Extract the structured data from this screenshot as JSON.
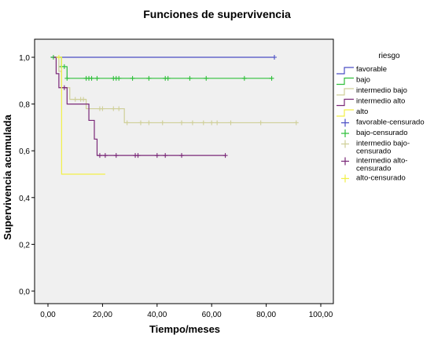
{
  "chart_data": {
    "type": "line",
    "title": "Funciones de supervivencia",
    "xlabel": "Tiempo/meses",
    "ylabel": "Supervivencia acumulada",
    "xlim": [
      0,
      100
    ],
    "ylim": [
      0,
      1
    ],
    "x_ticks": [
      0,
      20,
      40,
      60,
      80,
      100
    ],
    "x_tick_labels": [
      "0,00",
      "20,00",
      "40,00",
      "60,00",
      "80,00",
      "100,00"
    ],
    "y_ticks": [
      0,
      0.2,
      0.4,
      0.6,
      0.8,
      1.0
    ],
    "y_tick_labels": [
      "0,0",
      "0,2",
      "0,4",
      "0,6",
      "0,8",
      "1,0"
    ],
    "legend_title": "riesgo",
    "legend_position": "right",
    "series": [
      {
        "name": "favorable",
        "color": "#4a4ec4",
        "steps": [
          [
            1,
            1.0
          ],
          [
            83,
            1.0
          ]
        ],
        "censored": [
          [
            83,
            1.0
          ]
        ]
      },
      {
        "name": "bajo",
        "color": "#2fbf3a",
        "steps": [
          [
            1,
            1.0
          ],
          [
            5,
            0.96
          ],
          [
            7,
            0.91
          ],
          [
            82,
            0.91
          ]
        ],
        "censored": [
          [
            2,
            1.0
          ],
          [
            5,
            0.96
          ],
          [
            6,
            0.96
          ],
          [
            7,
            0.91
          ],
          [
            14,
            0.91
          ],
          [
            15,
            0.91
          ],
          [
            16,
            0.91
          ],
          [
            18,
            0.91
          ],
          [
            24,
            0.91
          ],
          [
            25,
            0.91
          ],
          [
            26,
            0.91
          ],
          [
            31,
            0.91
          ],
          [
            37,
            0.91
          ],
          [
            43,
            0.91
          ],
          [
            44,
            0.91
          ],
          [
            52,
            0.91
          ],
          [
            58,
            0.91
          ],
          [
            72,
            0.91
          ],
          [
            82,
            0.91
          ]
        ]
      },
      {
        "name": "intermedio bajo",
        "color": "#cfcf98",
        "steps": [
          [
            3,
            1.0
          ],
          [
            4,
            0.94
          ],
          [
            5,
            0.87
          ],
          [
            8,
            0.82
          ],
          [
            14,
            0.78
          ],
          [
            28,
            0.72
          ],
          [
            91,
            0.72
          ]
        ],
        "censored": [
          [
            10,
            0.82
          ],
          [
            12,
            0.82
          ],
          [
            13,
            0.82
          ],
          [
            19,
            0.78
          ],
          [
            20,
            0.78
          ],
          [
            24,
            0.78
          ],
          [
            26,
            0.78
          ],
          [
            29,
            0.72
          ],
          [
            34,
            0.72
          ],
          [
            37,
            0.72
          ],
          [
            42,
            0.72
          ],
          [
            49,
            0.72
          ],
          [
            53,
            0.72
          ],
          [
            57,
            0.72
          ],
          [
            60,
            0.72
          ],
          [
            62,
            0.72
          ],
          [
            67,
            0.72
          ],
          [
            78,
            0.72
          ],
          [
            91,
            0.72
          ]
        ]
      },
      {
        "name": "intermedio alto",
        "color": "#7a2878",
        "steps": [
          [
            2,
            1.0
          ],
          [
            3,
            0.93
          ],
          [
            4,
            0.87
          ],
          [
            7,
            0.8
          ],
          [
            15,
            0.73
          ],
          [
            17,
            0.65
          ],
          [
            18,
            0.58
          ],
          [
            65,
            0.58
          ]
        ],
        "censored": [
          [
            6,
            0.87
          ],
          [
            19,
            0.58
          ],
          [
            21,
            0.58
          ],
          [
            25,
            0.58
          ],
          [
            32,
            0.58
          ],
          [
            33,
            0.58
          ],
          [
            40,
            0.58
          ],
          [
            43,
            0.58
          ],
          [
            49,
            0.58
          ],
          [
            65,
            0.58
          ]
        ]
      },
      {
        "name": "alto",
        "color": "#f2f046",
        "steps": [
          [
            3,
            1.0
          ],
          [
            5,
            0.5
          ],
          [
            21,
            0.5
          ]
        ],
        "censored": [
          [
            4,
            1.0
          ]
        ]
      }
    ],
    "legend_items": [
      {
        "label": "favorable",
        "color": "#4a4ec4",
        "kind": "line"
      },
      {
        "label": "bajo",
        "color": "#2fbf3a",
        "kind": "line"
      },
      {
        "label": "intermedio bajo",
        "color": "#cfcf98",
        "kind": "line"
      },
      {
        "label": "intermedio alto",
        "color": "#7a2878",
        "kind": "line"
      },
      {
        "label": "alto",
        "color": "#f2f046",
        "kind": "line"
      },
      {
        "label": "favorable-censurado",
        "color": "#4a4ec4",
        "kind": "plus"
      },
      {
        "label": "bajo-censurado",
        "color": "#2fbf3a",
        "kind": "plus"
      },
      {
        "label": "intermedio bajo-censurado",
        "color": "#cfcf98",
        "kind": "plus",
        "lines": [
          "intermedio bajo-",
          "censurado"
        ]
      },
      {
        "label": "intermedio alto-censurado",
        "color": "#7a2878",
        "kind": "plus",
        "lines": [
          "intermedio alto-",
          "censurado"
        ]
      },
      {
        "label": "alto-censurado",
        "color": "#f2f046",
        "kind": "plus"
      }
    ]
  }
}
